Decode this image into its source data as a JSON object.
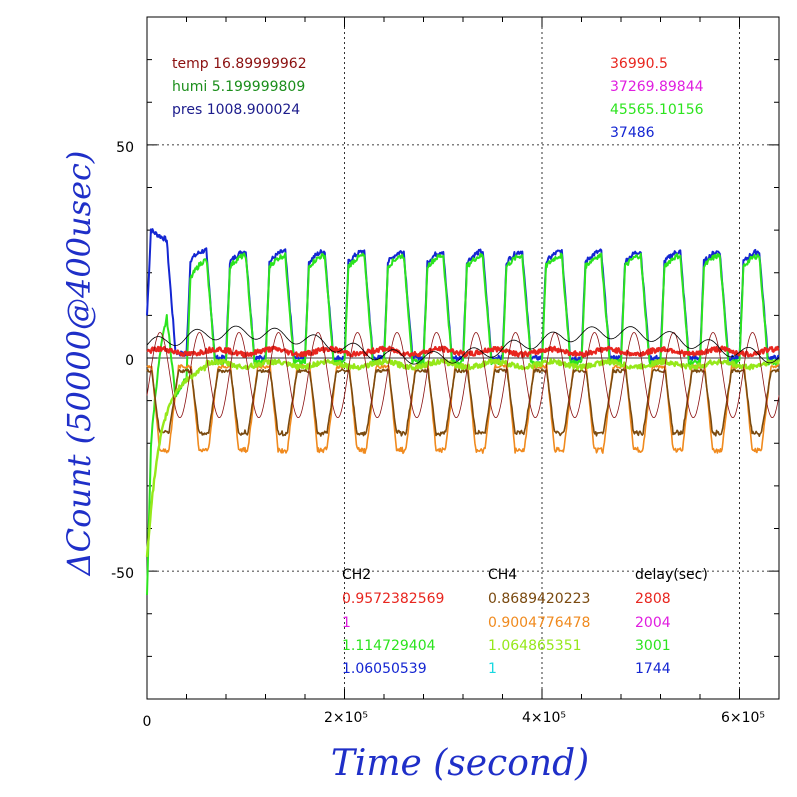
{
  "colors": {
    "red": "#e8261f",
    "brown": "#7a4a10",
    "orange": "#f08a1e",
    "magenta": "#e01ee0",
    "green": "#2ce41e",
    "lightgreen": "#96e81a",
    "blue": "#1426d2",
    "cyan": "#18d8e0",
    "darkred": "#8b1010",
    "darkgreen": "#1b8e1b",
    "navy": "#1c1c8c",
    "axisblue": "#1f2fc8"
  },
  "chart_data": {
    "type": "line",
    "xlabel": "Time (second)",
    "ylabel": "ΔCount (50000@400usec)",
    "xlim": [
      0,
      640000
    ],
    "ylim": [
      -80,
      80
    ],
    "grid": true,
    "x_tick_labels": [
      "0",
      "2×10⁵",
      "4×10⁵",
      "6×10⁵"
    ],
    "y_tick_labels": [
      "50",
      "0",
      "-50"
    ],
    "env_info": [
      {
        "label": "temp 16.89999962",
        "color": "darkred"
      },
      {
        "label": "humi 5.199999809",
        "color": "darkgreen"
      },
      {
        "label": "pres 1008.900024",
        "color": "navy"
      }
    ],
    "reference_values": [
      {
        "label": "36990.5",
        "color": "red"
      },
      {
        "label": "37269.89844",
        "color": "magenta"
      },
      {
        "label": "45565.10156",
        "color": "green"
      },
      {
        "label": "37486",
        "color": "blue"
      }
    ],
    "factor_table": {
      "headers": [
        "CH2",
        "CH4",
        "delay(sec)"
      ],
      "rows": [
        {
          "ch2": "0.9572382569",
          "ch2_color": "red",
          "ch4": "0.8689420223",
          "ch4_color": "brown",
          "delay": "2808",
          "delay_color": "red"
        },
        {
          "ch2": "1",
          "ch2_color": "magenta",
          "ch4": "0.9004776478",
          "ch4_color": "orange",
          "delay": "2004",
          "delay_color": "magenta"
        },
        {
          "ch2": "1.114729404",
          "ch2_color": "green",
          "ch4": "1.064865351",
          "ch4_color": "lightgreen",
          "delay": "3001",
          "delay_color": "green"
        },
        {
          "ch2": "1.06050539",
          "ch2_color": "blue",
          "ch4": "1",
          "ch4_color": "cyan",
          "delay": "1744",
          "delay_color": "blue"
        }
      ]
    },
    "period": 40000,
    "series_shapes": [
      {
        "id": "blue-ch2",
        "color": "blue",
        "width": 2,
        "kind": "pulse",
        "low": 0,
        "high": 25
      },
      {
        "id": "green-ch2",
        "color": "green",
        "width": 2,
        "kind": "pulse",
        "low": -1,
        "high": 24
      },
      {
        "id": "orange-ch4",
        "color": "orange",
        "width": 1.6,
        "kind": "dip",
        "low": -22,
        "high": -2
      },
      {
        "id": "brown-ch4",
        "color": "brown",
        "width": 1.6,
        "kind": "dip",
        "low": -18,
        "high": -3
      },
      {
        "id": "red-ch2",
        "color": "red",
        "width": 2.4,
        "kind": "flat",
        "level": 1.5
      },
      {
        "id": "lightgreen-ch4",
        "color": "lightgreen",
        "width": 2.4,
        "kind": "flat",
        "level": -1.5
      },
      {
        "id": "darkred-ch2-thin",
        "color": "darkred",
        "width": 0.8,
        "kind": "wave",
        "amp": 10,
        "offset": -4
      },
      {
        "id": "black-ref",
        "color": "black",
        "width": 0.8,
        "kind": "drift",
        "amp": 6
      }
    ]
  }
}
